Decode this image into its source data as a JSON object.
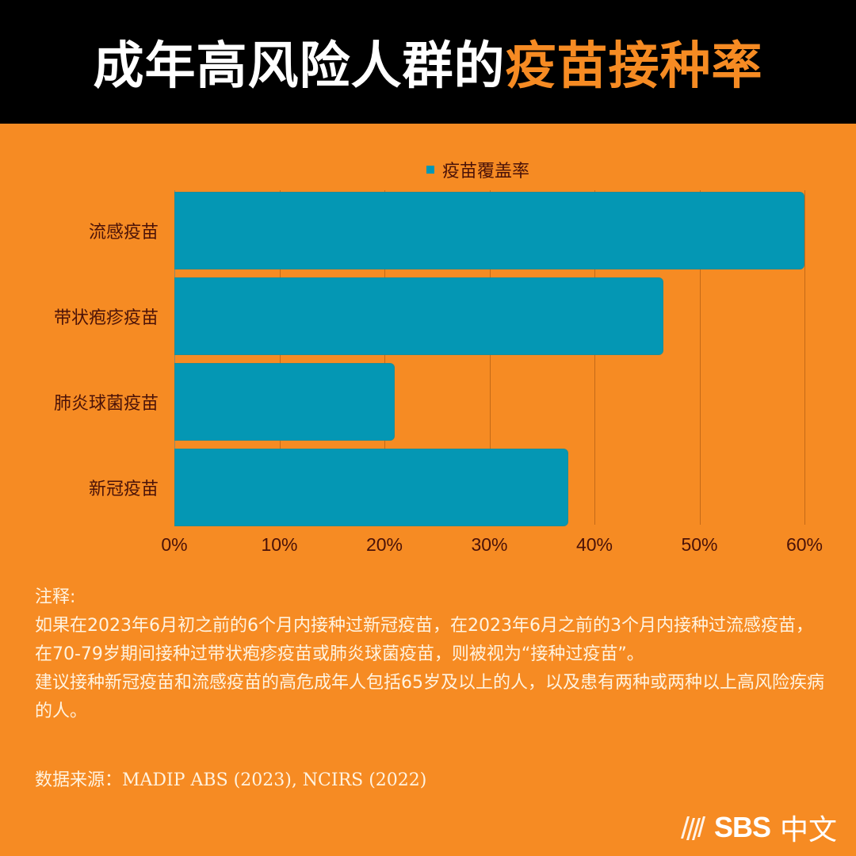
{
  "header": {
    "title_main": "成年高风险人群的",
    "title_accent": "疫苗接种率"
  },
  "colors": {
    "background": "#f68b23",
    "header_bg": "#000000",
    "bar": "#0497b4",
    "accent_text": "#f68b23",
    "label_text": "#4a1208",
    "notes_text": "#fff3e0"
  },
  "chart_data": {
    "type": "bar",
    "orientation": "horizontal",
    "title": "成年高风险人群的疫苗接种率",
    "categories": [
      "流感疫苗",
      "带状疱疹疫苗",
      "肺炎球菌疫苗",
      "新冠疫苗"
    ],
    "series": [
      {
        "name": "疫苗覆盖率",
        "values": [
          60,
          46.6,
          21,
          37.5
        ]
      }
    ],
    "xlabel": "",
    "ylabel": "",
    "xlim": [
      0,
      60
    ],
    "x_ticks": [
      "0%",
      "10%",
      "20%",
      "30%",
      "40%",
      "50%",
      "60%"
    ],
    "grid": true,
    "legend_position": "top",
    "unit": "%"
  },
  "legend": {
    "label": "疫苗覆盖率"
  },
  "notes": {
    "heading": "注释:",
    "paragraph1": "如果在2023年6月初之前的6个月内接种过新冠疫苗，在2023年6月之前的3个月内接种过流感疫苗，在70-79岁期间接种过带状疱疹疫苗或肺炎球菌疫苗，则被视为“接种过疫苗”。",
    "paragraph2": "建议接种新冠疫苗和流感疫苗的高危成年人包括65岁及以上的人，以及患有两种或两种以上高风险疾病的人。"
  },
  "source": "数据来源：MADIP ABS (2023), NCIRS (2022)",
  "logo": {
    "brand": "SBS",
    "language": "中文"
  }
}
